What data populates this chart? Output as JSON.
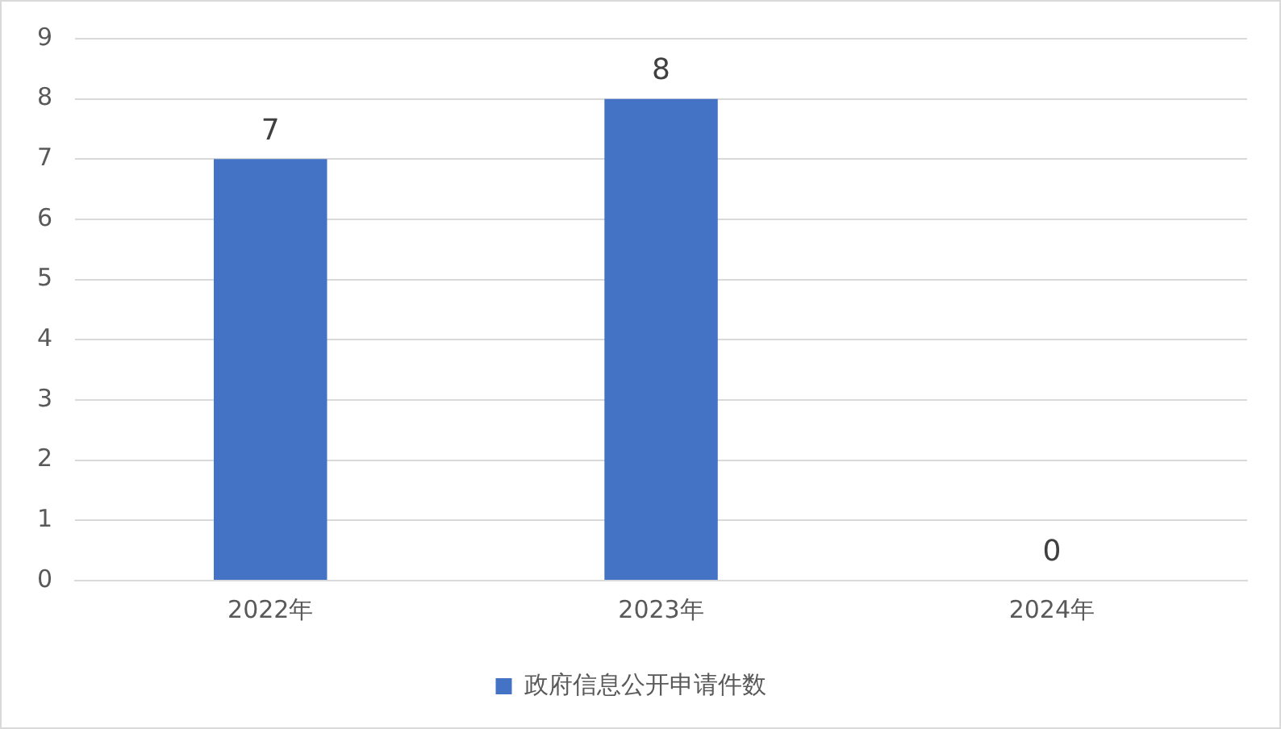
{
  "chart_data": {
    "type": "bar",
    "categories": [
      "2022年",
      "2023年",
      "2024年"
    ],
    "series": [
      {
        "name": "政府信息公开申请件数",
        "color": "#4472c4",
        "values": [
          7,
          8,
          0
        ]
      }
    ],
    "ylim": [
      0,
      9
    ],
    "yticks": [
      0,
      1,
      2,
      3,
      4,
      5,
      6,
      7,
      8,
      9
    ],
    "grid": "y",
    "legend": "bottom",
    "data_labels": true
  }
}
